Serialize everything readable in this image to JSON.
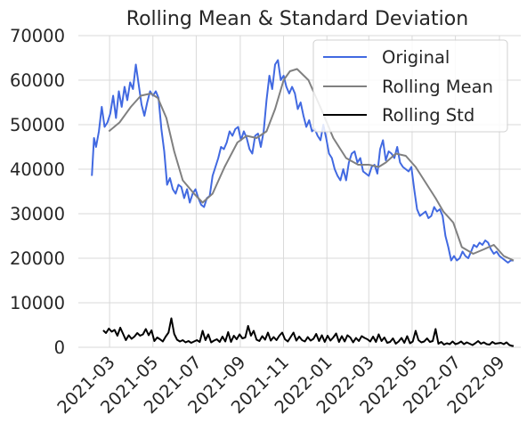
{
  "chart_data": {
    "type": "line",
    "title": "Rolling Mean & Standard Deviation",
    "xlabel": "",
    "ylabel": "",
    "ylim": [
      0,
      70000
    ],
    "y_ticks": [
      0,
      10000,
      20000,
      30000,
      40000,
      50000,
      60000,
      70000
    ],
    "x_range": [
      "2021-01-16",
      "2022-10-01"
    ],
    "x_ticks": [
      "2021-03",
      "2021-05",
      "2021-07",
      "2021-09",
      "2021-11",
      "2022-01",
      "2022-03",
      "2022-05",
      "2022-07",
      "2022-09"
    ],
    "x_tick_dates": [
      "2021-03-01",
      "2021-05-01",
      "2021-07-01",
      "2021-09-01",
      "2021-11-01",
      "2022-01-01",
      "2022-03-01",
      "2022-05-01",
      "2022-07-01",
      "2022-09-01"
    ],
    "grid": true,
    "legend_position": "top-right",
    "series": [
      {
        "name": "Original",
        "color": "#4169e1",
        "x": [
          "2021-02-04",
          "2021-02-07",
          "2021-02-10",
          "2021-02-14",
          "2021-02-18",
          "2021-02-22",
          "2021-02-26",
          "2021-03-02",
          "2021-03-06",
          "2021-03-10",
          "2021-03-14",
          "2021-03-18",
          "2021-03-22",
          "2021-03-26",
          "2021-03-30",
          "2021-04-03",
          "2021-04-07",
          "2021-04-11",
          "2021-04-15",
          "2021-04-19",
          "2021-04-23",
          "2021-04-27",
          "2021-05-01",
          "2021-05-05",
          "2021-05-09",
          "2021-05-13",
          "2021-05-17",
          "2021-05-21",
          "2021-05-25",
          "2021-05-29",
          "2021-06-02",
          "2021-06-06",
          "2021-06-10",
          "2021-06-14",
          "2021-06-18",
          "2021-06-22",
          "2021-06-26",
          "2021-06-30",
          "2021-07-04",
          "2021-07-08",
          "2021-07-12",
          "2021-07-16",
          "2021-07-20",
          "2021-07-24",
          "2021-07-28",
          "2021-08-01",
          "2021-08-05",
          "2021-08-09",
          "2021-08-13",
          "2021-08-17",
          "2021-08-21",
          "2021-08-25",
          "2021-08-29",
          "2021-09-02",
          "2021-09-06",
          "2021-09-10",
          "2021-09-14",
          "2021-09-18",
          "2021-09-22",
          "2021-09-26",
          "2021-09-30",
          "2021-10-04",
          "2021-10-08",
          "2021-10-12",
          "2021-10-16",
          "2021-10-20",
          "2021-10-24",
          "2021-10-28",
          "2021-11-01",
          "2021-11-05",
          "2021-11-09",
          "2021-11-13",
          "2021-11-17",
          "2021-11-21",
          "2021-11-25",
          "2021-11-29",
          "2021-12-03",
          "2021-12-07",
          "2021-12-11",
          "2021-12-15",
          "2021-12-19",
          "2021-12-23",
          "2021-12-27",
          "2021-12-31",
          "2022-01-04",
          "2022-01-08",
          "2022-01-12",
          "2022-01-16",
          "2022-01-20",
          "2022-01-24",
          "2022-01-28",
          "2022-02-01",
          "2022-02-05",
          "2022-02-09",
          "2022-02-13",
          "2022-02-17",
          "2022-02-21",
          "2022-02-25",
          "2022-03-01",
          "2022-03-05",
          "2022-03-09",
          "2022-03-13",
          "2022-03-17",
          "2022-03-21",
          "2022-03-25",
          "2022-03-29",
          "2022-04-02",
          "2022-04-06",
          "2022-04-10",
          "2022-04-14",
          "2022-04-18",
          "2022-04-22",
          "2022-04-26",
          "2022-04-30",
          "2022-05-04",
          "2022-05-08",
          "2022-05-12",
          "2022-05-16",
          "2022-05-20",
          "2022-05-24",
          "2022-05-28",
          "2022-06-01",
          "2022-06-05",
          "2022-06-09",
          "2022-06-13",
          "2022-06-17",
          "2022-06-21",
          "2022-06-25",
          "2022-06-29",
          "2022-07-03",
          "2022-07-07",
          "2022-07-11",
          "2022-07-15",
          "2022-07-19",
          "2022-07-23",
          "2022-07-27",
          "2022-07-31",
          "2022-08-04",
          "2022-08-08",
          "2022-08-12",
          "2022-08-16",
          "2022-08-20",
          "2022-08-24",
          "2022-08-28",
          "2022-09-01",
          "2022-09-05",
          "2022-09-09",
          "2022-09-13",
          "2022-09-17",
          "2022-09-21"
        ],
        "values": [
          38500,
          47000,
          45000,
          48500,
          54000,
          49500,
          50500,
          52500,
          56500,
          51500,
          57500,
          54000,
          58500,
          55500,
          59500,
          58000,
          63500,
          59000,
          54500,
          52000,
          55000,
          57500,
          56500,
          57500,
          56000,
          49000,
          44000,
          36500,
          38000,
          35500,
          34500,
          36500,
          36000,
          33500,
          35500,
          32500,
          34500,
          35500,
          33500,
          32000,
          31500,
          33500,
          34000,
          38500,
          40500,
          42500,
          45000,
          44500,
          46000,
          48500,
          47500,
          49000,
          49500,
          46500,
          48500,
          47000,
          44500,
          43500,
          47500,
          48000,
          45000,
          48500,
          55500,
          61000,
          58000,
          63500,
          64500,
          60000,
          61000,
          58500,
          57000,
          58500,
          57000,
          53500,
          55000,
          52000,
          49500,
          51000,
          48500,
          49000,
          47500,
          46500,
          50000,
          47000,
          43500,
          42500,
          40000,
          38500,
          37500,
          40000,
          37500,
          41500,
          43500,
          44000,
          41500,
          42500,
          39500,
          39000,
          38500,
          40500,
          41000,
          39000,
          44500,
          46500,
          42000,
          44000,
          43500,
          42500,
          45000,
          41500,
          40500,
          40000,
          39500,
          40500,
          35500,
          31000,
          29500,
          30000,
          30500,
          29000,
          29500,
          31500,
          30500,
          31000,
          29500,
          25000,
          22500,
          19500,
          20500,
          19500,
          20000,
          21500,
          20500,
          20000,
          21500,
          23000,
          22500,
          23500,
          23000,
          24000,
          23500,
          22000,
          21000,
          21500,
          20500,
          20000,
          19500,
          19000,
          19500,
          19500
        ]
      },
      {
        "name": "Rolling Mean",
        "color": "#808080",
        "x": [
          "2021-02-28",
          "2021-03-15",
          "2021-03-31",
          "2021-04-14",
          "2021-04-28",
          "2021-05-08",
          "2021-05-20",
          "2021-05-31",
          "2021-06-12",
          "2021-06-28",
          "2021-07-10",
          "2021-07-24",
          "2021-08-10",
          "2021-08-28",
          "2021-09-10",
          "2021-09-24",
          "2021-10-08",
          "2021-10-20",
          "2021-11-01",
          "2021-11-10",
          "2021-11-20",
          "2021-12-06",
          "2021-12-24",
          "2022-01-10",
          "2022-01-28",
          "2022-02-14",
          "2022-03-01",
          "2022-03-15",
          "2022-03-25",
          "2022-04-08",
          "2022-04-22",
          "2022-05-06",
          "2022-05-20",
          "2022-06-03",
          "2022-06-14",
          "2022-06-28",
          "2022-07-10",
          "2022-07-26",
          "2022-08-10",
          "2022-08-24",
          "2022-09-07",
          "2022-09-21"
        ],
        "values": [
          48500,
          50500,
          54000,
          56500,
          57000,
          56000,
          51500,
          44000,
          37500,
          34500,
          32500,
          34500,
          40500,
          46000,
          47500,
          47000,
          48500,
          53500,
          60000,
          62000,
          62500,
          60000,
          53500,
          47000,
          42500,
          41000,
          41000,
          40500,
          41500,
          43500,
          43000,
          40500,
          37000,
          33500,
          30500,
          28000,
          22500,
          21000,
          22000,
          23000,
          20500,
          19500
        ]
      },
      {
        "name": "Rolling Std",
        "color": "#000000",
        "x": [
          "2021-02-20",
          "2021-02-24",
          "2021-02-28",
          "2021-03-04",
          "2021-03-08",
          "2021-03-12",
          "2021-03-16",
          "2021-03-20",
          "2021-03-24",
          "2021-03-28",
          "2021-04-01",
          "2021-04-05",
          "2021-04-09",
          "2021-04-13",
          "2021-04-17",
          "2021-04-21",
          "2021-04-25",
          "2021-04-29",
          "2021-05-03",
          "2021-05-07",
          "2021-05-11",
          "2021-05-15",
          "2021-05-19",
          "2021-05-23",
          "2021-05-27",
          "2021-05-31",
          "2021-06-04",
          "2021-06-08",
          "2021-06-12",
          "2021-06-16",
          "2021-06-20",
          "2021-06-24",
          "2021-06-28",
          "2021-07-02",
          "2021-07-06",
          "2021-07-10",
          "2021-07-14",
          "2021-07-18",
          "2021-07-22",
          "2021-07-26",
          "2021-07-30",
          "2021-08-03",
          "2021-08-07",
          "2021-08-11",
          "2021-08-15",
          "2021-08-19",
          "2021-08-23",
          "2021-08-27",
          "2021-08-31",
          "2021-09-04",
          "2021-09-08",
          "2021-09-12",
          "2021-09-16",
          "2021-09-20",
          "2021-09-24",
          "2021-09-28",
          "2021-10-02",
          "2021-10-06",
          "2021-10-10",
          "2021-10-14",
          "2021-10-18",
          "2021-10-22",
          "2021-10-26",
          "2021-10-30",
          "2021-11-03",
          "2021-11-07",
          "2021-11-11",
          "2021-11-15",
          "2021-11-19",
          "2021-11-23",
          "2021-11-27",
          "2021-12-01",
          "2021-12-05",
          "2021-12-09",
          "2021-12-13",
          "2021-12-17",
          "2021-12-21",
          "2021-12-25",
          "2021-12-29",
          "2022-01-02",
          "2022-01-06",
          "2022-01-10",
          "2022-01-14",
          "2022-01-18",
          "2022-01-22",
          "2022-01-26",
          "2022-01-30",
          "2022-02-03",
          "2022-02-07",
          "2022-02-11",
          "2022-02-15",
          "2022-02-19",
          "2022-02-23",
          "2022-02-27",
          "2022-03-03",
          "2022-03-07",
          "2022-03-11",
          "2022-03-15",
          "2022-03-19",
          "2022-03-23",
          "2022-03-27",
          "2022-03-31",
          "2022-04-04",
          "2022-04-08",
          "2022-04-12",
          "2022-04-16",
          "2022-04-20",
          "2022-04-24",
          "2022-04-28",
          "2022-05-02",
          "2022-05-06",
          "2022-05-10",
          "2022-05-14",
          "2022-05-18",
          "2022-05-22",
          "2022-05-26",
          "2022-05-30",
          "2022-06-03",
          "2022-06-07",
          "2022-06-11",
          "2022-06-15",
          "2022-06-19",
          "2022-06-23",
          "2022-06-27",
          "2022-07-01",
          "2022-07-05",
          "2022-07-09",
          "2022-07-13",
          "2022-07-17",
          "2022-07-21",
          "2022-07-25",
          "2022-07-29",
          "2022-08-02",
          "2022-08-06",
          "2022-08-10",
          "2022-08-14",
          "2022-08-18",
          "2022-08-22",
          "2022-08-26",
          "2022-08-30",
          "2022-09-03",
          "2022-09-07",
          "2022-09-11",
          "2022-09-15",
          "2022-09-19",
          "2022-09-21"
        ],
        "values": [
          3800,
          3200,
          4200,
          3500,
          3900,
          2600,
          4400,
          3000,
          1600,
          2700,
          1900,
          2400,
          3200,
          2600,
          2900,
          4100,
          2700,
          3800,
          1400,
          2200,
          1800,
          1300,
          2400,
          3300,
          6500,
          3000,
          1700,
          1300,
          1600,
          1100,
          1400,
          1000,
          1300,
          1600,
          1200,
          3700,
          1600,
          2900,
          1100,
          1500,
          1800,
          1200,
          2400,
          1300,
          3400,
          1200,
          2600,
          1800,
          2900,
          2000,
          2200,
          4800,
          2600,
          3700,
          1700,
          1400,
          2500,
          1700,
          3300,
          1500,
          2300,
          1600,
          2600,
          3300,
          1800,
          1300,
          2300,
          3300,
          1500,
          2400,
          1600,
          1300,
          2300,
          1500,
          1900,
          3000,
          1400,
          2700,
          1200,
          2600,
          1500,
          2200,
          3100,
          1200,
          2500,
          1300,
          2700,
          2200,
          1100,
          2100,
          1400,
          2500,
          2100,
          1800,
          1300,
          2400,
          1200,
          2900,
          1400,
          2200,
          1000,
          1200,
          2000,
          800,
          1300,
          2100,
          1000,
          2500,
          900,
          1300,
          3700,
          1600,
          1100,
          1300,
          2000,
          1200,
          1400,
          4100,
          800,
          1200,
          600,
          900,
          700,
          1300,
          700,
          900,
          1300,
          700,
          1100,
          800,
          500,
          900,
          1400,
          800,
          1100,
          700,
          600,
          1200,
          800,
          900,
          1000,
          700,
          1100,
          500,
          300,
          300
        ]
      }
    ]
  }
}
